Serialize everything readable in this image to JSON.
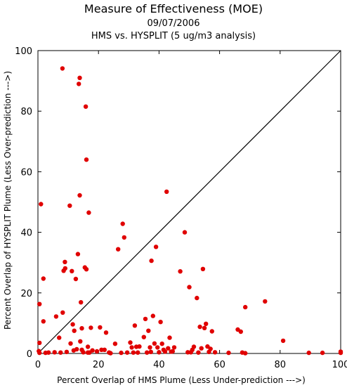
{
  "chart_data": {
    "type": "scatter",
    "title": "Measure of Effectiveness (MOE)",
    "date": "09/07/2006",
    "subtitle": "HMS vs. HYSPLIT  (5 ug/m3 analysis)",
    "xlabel": "Percent Overlap of HMS Plume (Less Under-prediction --->)",
    "ylabel": "Percent Overlap of HYSPLIT Plume (Less Over-prediction --->)",
    "xlim": [
      0,
      100
    ],
    "ylim": [
      0,
      100
    ],
    "xticks": [
      "0",
      "20",
      "40",
      "60",
      "80",
      "100"
    ],
    "yticks": [
      "0",
      "20",
      "40",
      "60",
      "80",
      "100"
    ],
    "grid": false,
    "reference_line": "y = x",
    "point_color": "#e00000",
    "points": [
      [
        0.5,
        16.3
      ],
      [
        0.5,
        3.5
      ],
      [
        1.0,
        49.3
      ],
      [
        1.8,
        24.7
      ],
      [
        1.8,
        10.6
      ],
      [
        0.5,
        0.2
      ],
      [
        0.3,
        0.8
      ],
      [
        2.5,
        0.2
      ],
      [
        3.5,
        0.3
      ],
      [
        5.5,
        0.4
      ],
      [
        6.0,
        12.2
      ],
      [
        7.0,
        5.2
      ],
      [
        7.5,
        0.3
      ],
      [
        8.1,
        94.1
      ],
      [
        8.2,
        13.5
      ],
      [
        8.5,
        27.3
      ],
      [
        8.9,
        30.2
      ],
      [
        9.0,
        28.1
      ],
      [
        9.5,
        0.5
      ],
      [
        10.5,
        48.8
      ],
      [
        10.8,
        3.3
      ],
      [
        11.2,
        27.2
      ],
      [
        11.5,
        9.6
      ],
      [
        11.8,
        1.0
      ],
      [
        12.0,
        7.5
      ],
      [
        12.5,
        24.6
      ],
      [
        12.8,
        1.4
      ],
      [
        13.2,
        32.8
      ],
      [
        13.5,
        89.0
      ],
      [
        13.8,
        91.0
      ],
      [
        13.8,
        52.2
      ],
      [
        14.0,
        4.0
      ],
      [
        14.2,
        16.9
      ],
      [
        14.5,
        8.3
      ],
      [
        14.5,
        1.2
      ],
      [
        15.0,
        0.4
      ],
      [
        15.5,
        28.4
      ],
      [
        15.8,
        81.5
      ],
      [
        16.0,
        64.0
      ],
      [
        16.0,
        27.8
      ],
      [
        16.5,
        0.3
      ],
      [
        16.5,
        2.2
      ],
      [
        16.8,
        46.5
      ],
      [
        17.0,
        0.3
      ],
      [
        17.5,
        8.5
      ],
      [
        18.0,
        1.0
      ],
      [
        19.5,
        0.7
      ],
      [
        20.5,
        8.6
      ],
      [
        21.0,
        1.2
      ],
      [
        22.0,
        1.2
      ],
      [
        22.5,
        6.9
      ],
      [
        23.5,
        0.3
      ],
      [
        24.0,
        0.1
      ],
      [
        25.5,
        3.2
      ],
      [
        26.5,
        34.4
      ],
      [
        27.5,
        0.2
      ],
      [
        28.0,
        42.8
      ],
      [
        28.5,
        38.3
      ],
      [
        29.5,
        0.3
      ],
      [
        30.5,
        3.6
      ],
      [
        31.0,
        2.0
      ],
      [
        31.5,
        0.3
      ],
      [
        32.0,
        9.2
      ],
      [
        32.5,
        2.2
      ],
      [
        33.0,
        0.3
      ],
      [
        33.5,
        2.3
      ],
      [
        35.0,
        5.4
      ],
      [
        35.5,
        11.4
      ],
      [
        36.0,
        0.3
      ],
      [
        36.5,
        7.5
      ],
      [
        37.0,
        2.0
      ],
      [
        37.3,
        0.5
      ],
      [
        37.5,
        30.6
      ],
      [
        38.0,
        12.4
      ],
      [
        38.5,
        3.3
      ],
      [
        39.0,
        35.2
      ],
      [
        39.5,
        2.0
      ],
      [
        40.0,
        0.4
      ],
      [
        40.5,
        10.4
      ],
      [
        41.0,
        3.2
      ],
      [
        41.5,
        1.2
      ],
      [
        42.0,
        0.6
      ],
      [
        42.5,
        53.4
      ],
      [
        43.0,
        1.7
      ],
      [
        43.5,
        5.2
      ],
      [
        44.0,
        0.6
      ],
      [
        44.5,
        0.7
      ],
      [
        45.0,
        2.0
      ],
      [
        47.0,
        27.1
      ],
      [
        48.5,
        40.0
      ],
      [
        49.5,
        0.4
      ],
      [
        50.0,
        21.9
      ],
      [
        50.5,
        0.4
      ],
      [
        51.0,
        1.2
      ],
      [
        51.5,
        2.2
      ],
      [
        52.5,
        18.3
      ],
      [
        53.0,
        0.3
      ],
      [
        53.5,
        8.8
      ],
      [
        54.0,
        1.7
      ],
      [
        54.5,
        27.9
      ],
      [
        55.0,
        8.4
      ],
      [
        55.5,
        9.8
      ],
      [
        56.0,
        2.3
      ],
      [
        56.5,
        0.5
      ],
      [
        57.0,
        1.5
      ],
      [
        57.5,
        7.3
      ],
      [
        58.5,
        0.4
      ],
      [
        63.0,
        0.2
      ],
      [
        66.0,
        7.9
      ],
      [
        67.0,
        7.2
      ],
      [
        67.5,
        0.3
      ],
      [
        68.5,
        0.1
      ],
      [
        68.5,
        15.3
      ],
      [
        75.0,
        17.2
      ],
      [
        81.0,
        4.2
      ],
      [
        89.5,
        0.2
      ],
      [
        94.0,
        0.2
      ],
      [
        100.0,
        0.2
      ],
      [
        100.0,
        0.6
      ]
    ]
  }
}
